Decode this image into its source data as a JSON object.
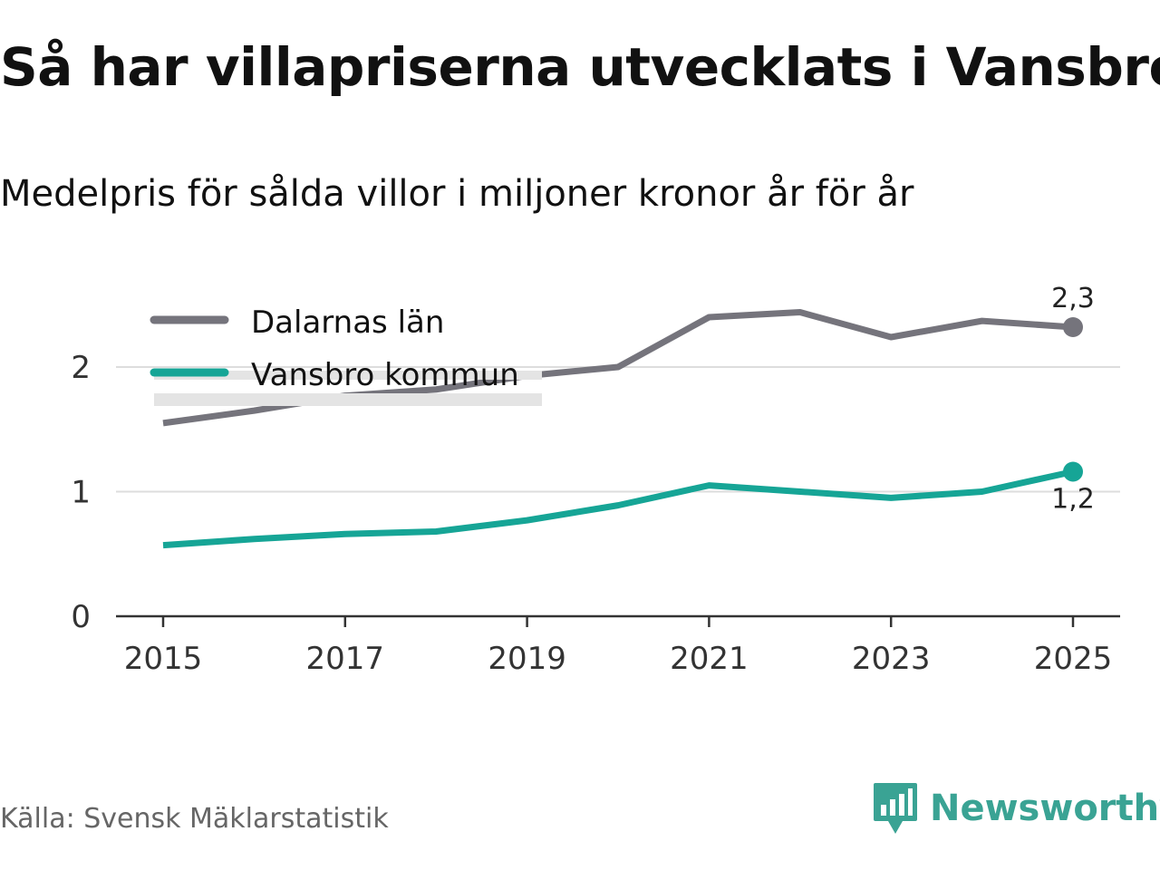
{
  "header": {
    "title": "Så har villapriserna utvecklats i Vansbro",
    "subtitle": "Medelpris för sålda villor i miljoner kronor år för år"
  },
  "footer": {
    "source": "Källa: Svensk Mäklarstatistik",
    "brand": "Newsworthy",
    "brand_icon": "newsworthy-logo-icon"
  },
  "colors": {
    "dalarna": "#75747c",
    "vansbro": "#16a596",
    "legend_highlight": "#e4e4e4",
    "grid": "#dddddd",
    "axis": "#333333",
    "brand": "#3aa394"
  },
  "chart_data": {
    "type": "line",
    "title": "Så har villapriserna utvecklats i Vansbro",
    "subtitle": "Medelpris för sålda villor i miljoner kronor år för år",
    "xlabel": "",
    "ylabel": "",
    "x": [
      2015,
      2016,
      2017,
      2018,
      2019,
      2020,
      2021,
      2022,
      2023,
      2024,
      2025
    ],
    "xlim": [
      2014.5,
      2025.5
    ],
    "ylim": [
      0,
      2.55
    ],
    "xticks": [
      "2015",
      "2017",
      "2019",
      "2021",
      "2023",
      "2025"
    ],
    "yticks": [
      "0",
      "1",
      "2"
    ],
    "grid": true,
    "legend_position": "top-left",
    "series": [
      {
        "name": "Dalarnas län",
        "color": "#75747c",
        "values": [
          1.55,
          1.65,
          1.77,
          1.82,
          1.93,
          2.0,
          2.4,
          2.44,
          2.24,
          2.37,
          2.32
        ],
        "end_label": "2,3"
      },
      {
        "name": "Vansbro kommun",
        "color": "#16a596",
        "values": [
          0.57,
          0.62,
          0.66,
          0.68,
          0.77,
          0.89,
          1.05,
          1.0,
          0.95,
          1.0,
          1.16
        ],
        "end_label": "1,2"
      }
    ]
  }
}
